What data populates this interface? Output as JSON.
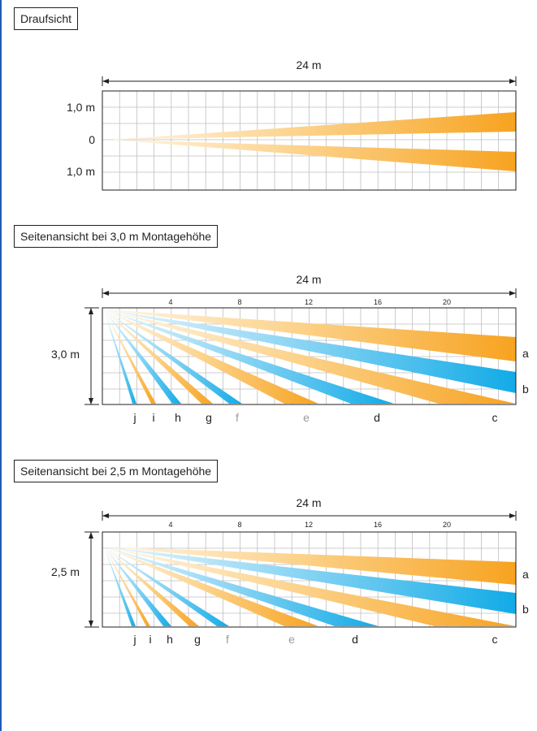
{
  "colors": {
    "accent_blue": "#1f5bb5",
    "grid": "#bfbfbf",
    "line": "#231f20",
    "orange": "#f7a823",
    "orange_light": "#fde7c0",
    "blue": "#17aee8",
    "blue_light": "#c6e9f8",
    "muted_label": "#9a9a9a"
  },
  "top_view": {
    "title": "Draufsicht",
    "span_label": "24 m",
    "y_labels": [
      "1,0 m",
      "0",
      "1,0 m"
    ]
  },
  "side_view_30": {
    "title": "Seitenansicht bei 3,0 m Montagehöhe",
    "span_label": "24 m",
    "height_label": "3,0 m",
    "ticks": [
      "4",
      "8",
      "12",
      "16",
      "20"
    ],
    "zone_labels": [
      "a",
      "b"
    ],
    "beam_labels": [
      "j",
      "i",
      "h",
      "g",
      "f",
      "e",
      "d",
      "c"
    ]
  },
  "side_view_25": {
    "title": "Seitenansicht bei 2,5 m Montagehöhe",
    "span_label": "24 m",
    "height_label": "2,5 m",
    "ticks": [
      "4",
      "8",
      "12",
      "16",
      "20"
    ],
    "zone_labels": [
      "a",
      "b"
    ],
    "beam_labels": [
      "j",
      "i",
      "h",
      "g",
      "f",
      "e",
      "d",
      "c"
    ]
  }
}
